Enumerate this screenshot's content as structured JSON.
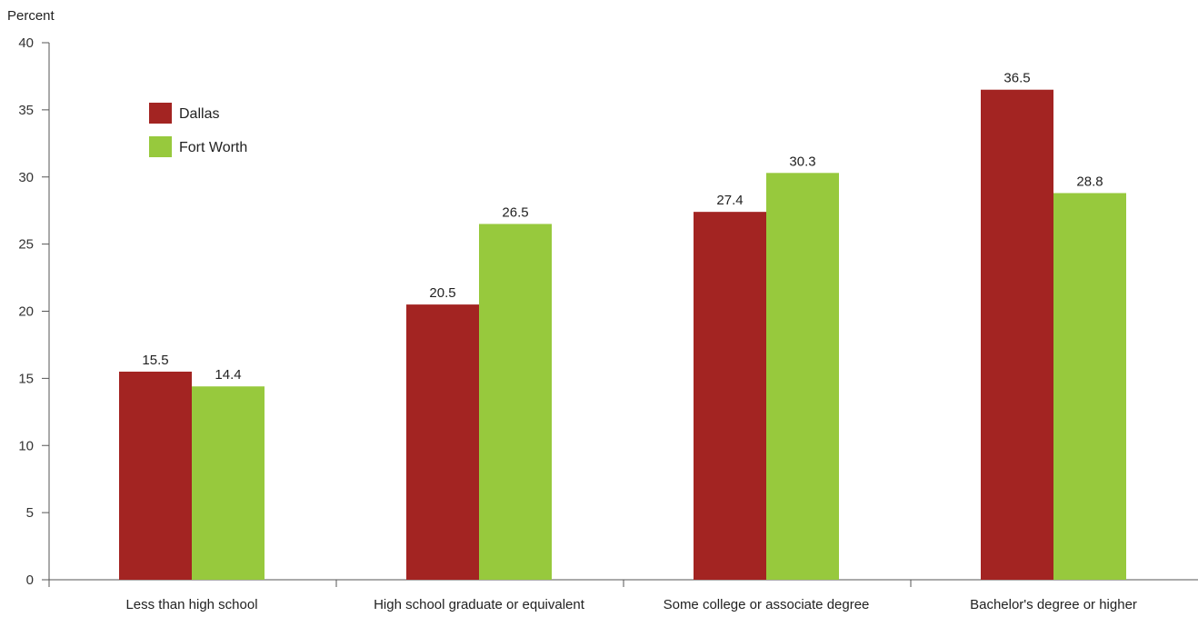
{
  "chart_data": {
    "type": "bar",
    "ylabel": "Percent",
    "ylim": [
      0,
      40
    ],
    "yticks": [
      0,
      5,
      10,
      15,
      20,
      25,
      30,
      35,
      40
    ],
    "categories": [
      "Less than high school",
      "High school graduate or equivalent",
      "Some college or associate degree",
      "Bachelor's degree or higher"
    ],
    "series": [
      {
        "name": "Dallas",
        "color": "#a32422",
        "values": [
          15.5,
          20.5,
          27.4,
          36.5
        ]
      },
      {
        "name": "Fort Worth",
        "color": "#97c93d",
        "values": [
          14.4,
          26.5,
          30.3,
          28.8
        ]
      }
    ],
    "legend": "top-left",
    "grid": false
  }
}
